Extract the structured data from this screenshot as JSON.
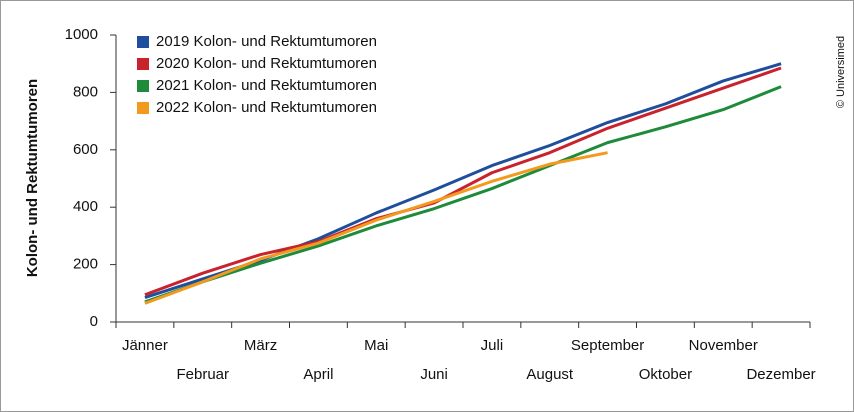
{
  "chart_data": {
    "type": "line",
    "y_label": "Kolon- und Rektumtumoren",
    "credit": "© Universimed",
    "categories": [
      "Jänner",
      "Februar",
      "März",
      "April",
      "Mai",
      "Juni",
      "Juli",
      "August",
      "September",
      "Oktober",
      "November",
      "Dezember"
    ],
    "series": [
      {
        "name": "2019 Kolon- und Rektumtumoren",
        "color": "#1f4e9c",
        "values": [
          85,
          150,
          215,
          290,
          380,
          460,
          545,
          615,
          695,
          760,
          840,
          900
        ]
      },
      {
        "name": "2020 Kolon- und Rektumtumoren",
        "color": "#c8232c",
        "values": [
          95,
          170,
          235,
          280,
          360,
          415,
          520,
          590,
          675,
          745,
          815,
          885
        ]
      },
      {
        "name": "2021 Kolon- und Rektumtumoren",
        "color": "#1e8b3a",
        "values": [
          70,
          140,
          205,
          265,
          335,
          395,
          465,
          545,
          625,
          680,
          740,
          820
        ]
      },
      {
        "name": "2022 Kolon- und Rektumtumoren",
        "color": "#f39a1e",
        "values": [
          65,
          140,
          220,
          275,
          355,
          420,
          490,
          550,
          590,
          null,
          null,
          null
        ]
      }
    ],
    "ylim": [
      0,
      1000
    ],
    "yticks": [
      0,
      200,
      400,
      600,
      800,
      1000
    ]
  }
}
